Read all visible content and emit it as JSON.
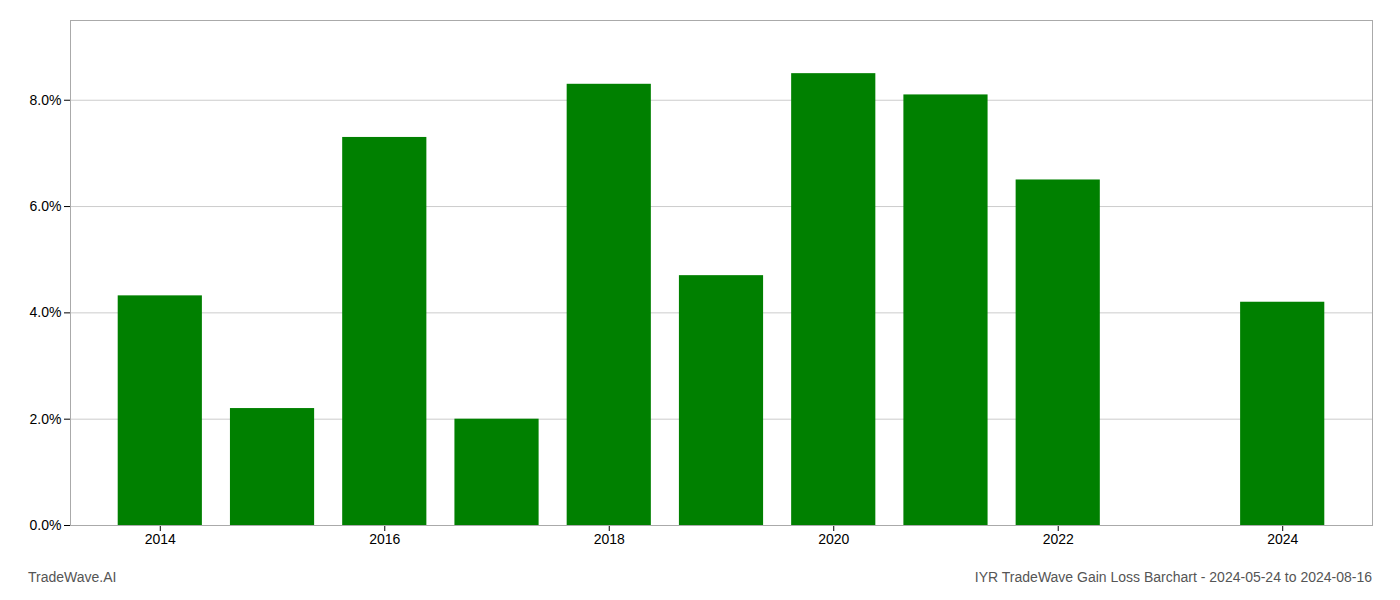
{
  "chart_data": {
    "type": "bar",
    "x": [
      2014,
      2015,
      2016,
      2017,
      2018,
      2019,
      2020,
      2021,
      2022,
      2023,
      2024
    ],
    "values": [
      0.0432,
      0.022,
      0.073,
      0.02,
      0.083,
      0.047,
      0.085,
      0.081,
      0.065,
      0.0,
      0.042
    ],
    "color": "#008000",
    "xlim": [
      2013.2,
      2024.8
    ],
    "xticks": [
      2014,
      2016,
      2018,
      2020,
      2022,
      2024
    ],
    "ylim": [
      0,
      0.095
    ],
    "yticks": [
      {
        "value": 0.0,
        "label": "0.0%"
      },
      {
        "value": 0.02,
        "label": "2.0%"
      },
      {
        "value": 0.04,
        "label": "4.0%"
      },
      {
        "value": 0.06,
        "label": "6.0%"
      },
      {
        "value": 0.08,
        "label": "8.0%"
      }
    ],
    "grid": true,
    "annotations": [
      "TradeWave.AI",
      "IYR TradeWave Gain Loss Barchart - 2024-05-24 to 2024-08-16"
    ]
  }
}
